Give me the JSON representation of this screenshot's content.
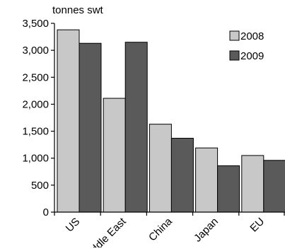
{
  "chart_data": {
    "type": "bar",
    "ylabel": "tonnes swt",
    "categories": [
      "US",
      "Middle East",
      "China",
      "Japan",
      "EU"
    ],
    "series": [
      {
        "name": "2008",
        "values": [
          3380,
          2110,
          1630,
          1190,
          1050
        ],
        "color": "#c8c8c8"
      },
      {
        "name": "2009",
        "values": [
          3130,
          3150,
          1370,
          860,
          960
        ],
        "color": "#5a5a5a"
      }
    ],
    "ylim": [
      0,
      3500
    ],
    "yticks": [
      "0",
      "500",
      "1,000",
      "1,500",
      "2,000",
      "2,500",
      "3,000",
      "3,500"
    ],
    "grid": false,
    "legend_position": "top-right"
  }
}
